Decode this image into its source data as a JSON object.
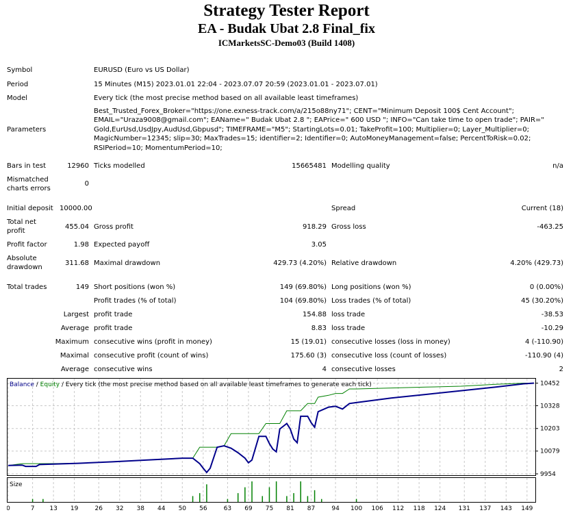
{
  "header": {
    "title": "Strategy Tester Report",
    "ea_name": "EA - Budak Ubat 2.8 Final_fix",
    "server": "ICMarketsSC-Demo03 (Build 1408)"
  },
  "info": {
    "symbol_label": "Symbol",
    "symbol_value": "EURUSD (Euro vs US Dollar)",
    "period_label": "Period",
    "period_value": "15 Minutes (M15) 2023.01.01 22:04 - 2023.07.07 20:59 (2023.01.01 - 2023.07.01)",
    "model_label": "Model",
    "model_value": "Every tick (the most precise method based on all available least timeframes)",
    "parameters_label": "Parameters",
    "parameters_value": "Best_Trusted_Forex_Broker=\"https://one.exness-track.com/a/215o88ny71\"; CENT=\"Minimum Deposit 100$ Cent Account\"; EMAIL=\"Uraza9008@gmail.com\"; EAName=\" Budak Ubat 2.8 \"; EAPrice=\" 600 USD \"; INFO=\"Can take time to open trade\"; PAIR=\" Gold,EurUsd,UsdJpy,AudUsd,Gbpusd\"; TIMEFRAME=\"M5\"; StartingLots=0.01; TakeProfit=100; Multiplier=0; Layer_Multiplier=0; MagicNumber=12345; slip=30; MaxTrades=15; identifier=2; Identifier=0; AutoMoneyManagement=false; PercentToRisk=0.02; RSIPeriod=10; MomentumPeriod=10;"
  },
  "stats": {
    "bars_label": "Bars in test",
    "bars_value": "12960",
    "ticks_label": "Ticks modelled",
    "ticks_value": "15665481",
    "quality_label": "Modelling quality",
    "quality_value": "n/a",
    "mismatch_label_1": "Mismatched",
    "mismatch_label_2": "charts errors",
    "mismatch_value": "0",
    "deposit_label": "Initial deposit",
    "deposit_value": "10000.00",
    "spread_label": "Spread",
    "spread_value": "Current (18)",
    "net_label_1": "Total net",
    "net_label_2": "profit",
    "net_value": "455.04",
    "gross_profit_label": "Gross profit",
    "gross_profit_value": "918.29",
    "gross_loss_label": "Gross loss",
    "gross_loss_value": "-463.25",
    "pf_label": "Profit factor",
    "pf_value": "1.98",
    "payoff_label": "Expected payoff",
    "payoff_value": "3.05",
    "abs_dd_label_1": "Absolute",
    "abs_dd_label_2": "drawdown",
    "abs_dd_value": "311.68",
    "max_dd_label": "Maximal drawdown",
    "max_dd_value": "429.73 (4.20%)",
    "rel_dd_label": "Relative drawdown",
    "rel_dd_value": "4.20% (429.73)",
    "total_trades_label": "Total trades",
    "total_trades_value": "149",
    "short_label": "Short positions (won %)",
    "short_value": "149 (69.80%)",
    "long_label": "Long positions (won %)",
    "long_value": "0 (0.00%)",
    "profit_trades_label": "Profit trades (% of total)",
    "profit_trades_value": "104 (69.80%)",
    "loss_trades_label": "Loss trades (% of total)",
    "loss_trades_value": "45 (30.20%)",
    "largest_label": "Largest",
    "largest_profit_label": "profit trade",
    "largest_profit_value": "154.88",
    "largest_loss_label": "loss trade",
    "largest_loss_value": "-38.53",
    "average_label": "Average",
    "average_profit_label": "profit trade",
    "average_profit_value": "8.83",
    "average_loss_label": "loss trade",
    "average_loss_value": "-10.29",
    "maximum_label": "Maximum",
    "max_cons_wins_label": "consecutive wins (profit in money)",
    "max_cons_wins_value": "15 (19.01)",
    "max_cons_losses_label": "consecutive losses (loss in money)",
    "max_cons_losses_value": "4 (-110.90)",
    "maximal_label": "Maximal",
    "maximal_cons_profit_label": "consecutive profit (count of wins)",
    "maximal_cons_profit_value": "175.60 (3)",
    "maximal_cons_loss_label": "consecutive loss (count of losses)",
    "maximal_cons_loss_value": "-110.90 (4)",
    "average2_label": "Average",
    "avg_cons_wins_label": "consecutive wins",
    "avg_cons_wins_value": "4",
    "avg_cons_losses_label": "consecutive losses",
    "avg_cons_losses_value": "2"
  },
  "colors": {
    "balance": "#00008b",
    "equity": "#008000",
    "size": "#008000",
    "grid": "#c8c8c8"
  },
  "chart_data": {
    "type": "line",
    "legend": {
      "balance": "Balance",
      "sep1": " / ",
      "equity": "Equity",
      "rest": " / Every tick (the most precise method based on all available least timeframes to generate each tick)"
    },
    "size_label": "Size",
    "y_ticks": [
      10452,
      10328,
      10203,
      10079,
      9954
    ],
    "ylim": [
      9954,
      10465
    ],
    "xlim": [
      0,
      151
    ],
    "x_ticks": [
      0,
      7,
      13,
      19,
      26,
      32,
      38,
      44,
      50,
      56,
      63,
      69,
      75,
      81,
      87,
      94,
      100,
      106,
      112,
      118,
      124,
      131,
      137,
      143,
      149
    ],
    "balance": [
      [
        0,
        10000
      ],
      [
        4,
        10002
      ],
      [
        5,
        9995
      ],
      [
        8,
        9995
      ],
      [
        9,
        10005
      ],
      [
        20,
        10012
      ],
      [
        30,
        10020
      ],
      [
        40,
        10030
      ],
      [
        50,
        10040
      ],
      [
        53,
        10040
      ],
      [
        55,
        10010
      ],
      [
        56,
        9985
      ],
      [
        57,
        9962
      ],
      [
        58,
        9985
      ],
      [
        60,
        10100
      ],
      [
        62,
        10108
      ],
      [
        64,
        10095
      ],
      [
        66,
        10070
      ],
      [
        68,
        10040
      ],
      [
        69,
        10015
      ],
      [
        70,
        10030
      ],
      [
        72,
        10160
      ],
      [
        74,
        10160
      ],
      [
        75,
        10120
      ],
      [
        76,
        10090
      ],
      [
        77,
        10075
      ],
      [
        78,
        10200
      ],
      [
        80,
        10230
      ],
      [
        81,
        10200
      ],
      [
        82,
        10145
      ],
      [
        83,
        10125
      ],
      [
        84,
        10270
      ],
      [
        86,
        10270
      ],
      [
        87,
        10235
      ],
      [
        88,
        10210
      ],
      [
        89,
        10295
      ],
      [
        92,
        10320
      ],
      [
        94,
        10325
      ],
      [
        96,
        10310
      ],
      [
        98,
        10340
      ],
      [
        100,
        10345
      ],
      [
        110,
        10370
      ],
      [
        120,
        10390
      ],
      [
        130,
        10410
      ],
      [
        140,
        10430
      ],
      [
        148,
        10448
      ],
      [
        151,
        10452
      ]
    ],
    "equity": [
      [
        0,
        10000
      ],
      [
        4,
        10010
      ],
      [
        5,
        10010
      ],
      [
        8,
        10010
      ],
      [
        9,
        10010
      ],
      [
        20,
        10012
      ],
      [
        30,
        10020
      ],
      [
        40,
        10030
      ],
      [
        50,
        10040
      ],
      [
        53,
        10040
      ],
      [
        55,
        10100
      ],
      [
        60,
        10100
      ],
      [
        62,
        10108
      ],
      [
        64,
        10175
      ],
      [
        70,
        10175
      ],
      [
        72,
        10175
      ],
      [
        74,
        10230
      ],
      [
        78,
        10230
      ],
      [
        80,
        10300
      ],
      [
        84,
        10300
      ],
      [
        86,
        10340
      ],
      [
        88,
        10340
      ],
      [
        89,
        10375
      ],
      [
        92,
        10385
      ],
      [
        94,
        10395
      ],
      [
        96,
        10395
      ],
      [
        98,
        10420
      ],
      [
        100,
        10420
      ],
      [
        110,
        10425
      ],
      [
        120,
        10430
      ],
      [
        130,
        10435
      ],
      [
        140,
        10445
      ],
      [
        148,
        10452
      ],
      [
        151,
        10452
      ]
    ],
    "sizes": [
      [
        7,
        1
      ],
      [
        10,
        1
      ],
      [
        53,
        2
      ],
      [
        55,
        3
      ],
      [
        57,
        6
      ],
      [
        63,
        1
      ],
      [
        66,
        3
      ],
      [
        68,
        5
      ],
      [
        70,
        7
      ],
      [
        73,
        2
      ],
      [
        75,
        5
      ],
      [
        77,
        7
      ],
      [
        80,
        2
      ],
      [
        82,
        3
      ],
      [
        84,
        7
      ],
      [
        86,
        2
      ],
      [
        88,
        4
      ],
      [
        90,
        1
      ],
      [
        100,
        1
      ]
    ]
  }
}
